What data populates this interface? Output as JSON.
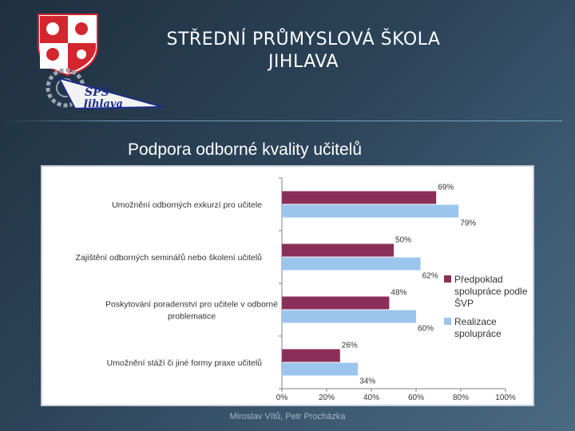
{
  "header": {
    "title_line1": "STŘEDNÍ PRŮMYSLOVÁ ŠKOLA",
    "title_line2": "JIHLAVA",
    "logo_text_line1": "SPŠ",
    "logo_text_line2": "Jihlava"
  },
  "slide": {
    "subtitle": "Podpora odborné kvality učitelů"
  },
  "footer": {
    "author": "Miroslav Vítů, Petr Procházka"
  },
  "colors": {
    "series1": "#8b2f5a",
    "series2": "#9cc5ee",
    "accent_line": "#78aac8"
  },
  "chart_data": {
    "type": "bar",
    "orientation": "horizontal",
    "categories": [
      "Umožnění odborných exkurzí pro učitele",
      "Zajištění odborných seminářů nebo školení učitelů",
      "Poskytování poradenství pro učitele v odborné problematice",
      "Umožnění stáží či jiné formy praxe učitelů"
    ],
    "category_lines": [
      [
        "Umožnění odborných exkurzí pro učitele"
      ],
      [
        "Zajištění odborných seminářů nebo školení učitelů"
      ],
      [
        "Poskytování poradenství pro učitele v odborné",
        "problematice"
      ],
      [
        "Umožnění stáží či jiné formy praxe učitelů"
      ]
    ],
    "series": [
      {
        "name": "Předpoklad spolupráce podle ŠVP",
        "legend_lines": [
          "Předpoklad",
          "spolupráce podle",
          "ŠVP"
        ],
        "values": [
          69,
          50,
          48,
          26
        ],
        "labels": [
          "69%",
          "50%",
          "48%",
          "26%"
        ]
      },
      {
        "name": "Realizace spolupráce",
        "legend_lines": [
          "Realizace",
          "spolupráce"
        ],
        "values": [
          79,
          62,
          60,
          34
        ],
        "labels": [
          "79%",
          "62%",
          "60%",
          "34%"
        ]
      }
    ],
    "xlim": [
      0,
      100
    ],
    "xticks": [
      0,
      20,
      40,
      60,
      80,
      100
    ],
    "xtick_labels": [
      "0%",
      "20%",
      "40%",
      "60%",
      "80%",
      "100%"
    ],
    "legend_position": "right",
    "grid": false
  }
}
